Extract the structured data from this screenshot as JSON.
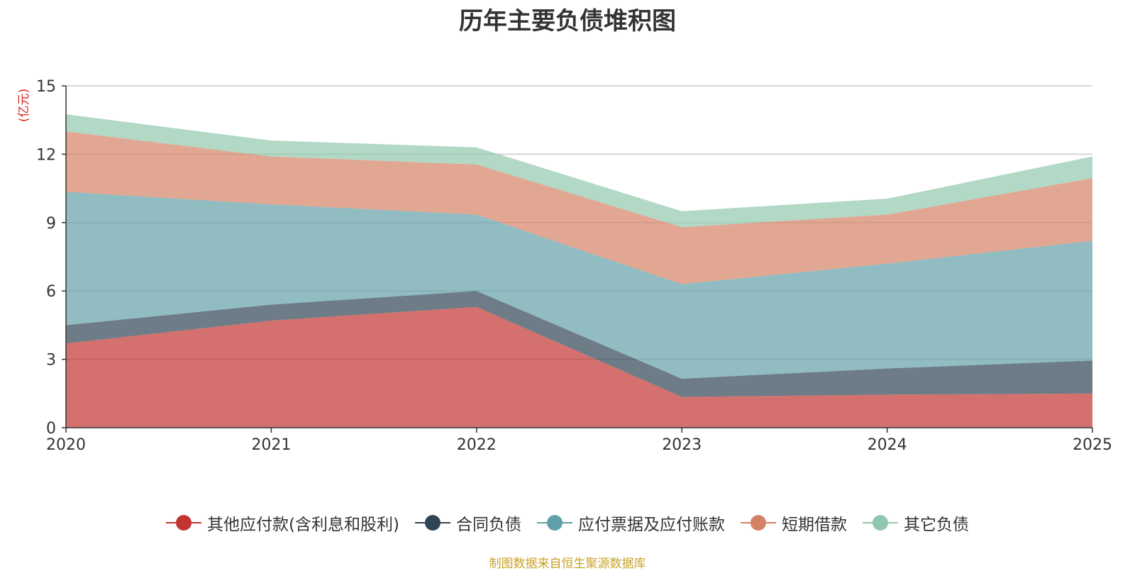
{
  "chart_data": {
    "type": "area",
    "stacked": true,
    "title": "历年主要负债堆积图",
    "ylabel": "(亿元)",
    "xlabel": "",
    "categories": [
      "2020",
      "2021",
      "2022",
      "2023",
      "2024",
      "2025"
    ],
    "ylim": [
      0,
      15
    ],
    "yticks": [
      0,
      3,
      6,
      9,
      12,
      15
    ],
    "grid": true,
    "legend_position": "bottom",
    "series": [
      {
        "name": "其他应付款(含利息和股利)",
        "color": "#c23531",
        "values": [
          3.7,
          4.7,
          5.3,
          1.35,
          1.45,
          1.5
        ]
      },
      {
        "name": "合同负债",
        "color": "#2f4554",
        "values": [
          0.8,
          0.7,
          0.7,
          0.8,
          1.15,
          1.45
        ]
      },
      {
        "name": "应付票据及应付账款",
        "color": "#61a0a8",
        "values": [
          5.85,
          4.4,
          3.35,
          4.15,
          4.6,
          5.25
        ]
      },
      {
        "name": "短期借款",
        "color": "#d48265",
        "values": [
          2.65,
          2.1,
          2.2,
          2.5,
          2.15,
          2.75
        ]
      },
      {
        "name": "其它负债",
        "color": "#91c7ae",
        "values": [
          0.75,
          0.7,
          0.75,
          0.7,
          0.7,
          0.95
        ]
      }
    ]
  },
  "source_text": "制图数据来自恒生聚源数据库"
}
